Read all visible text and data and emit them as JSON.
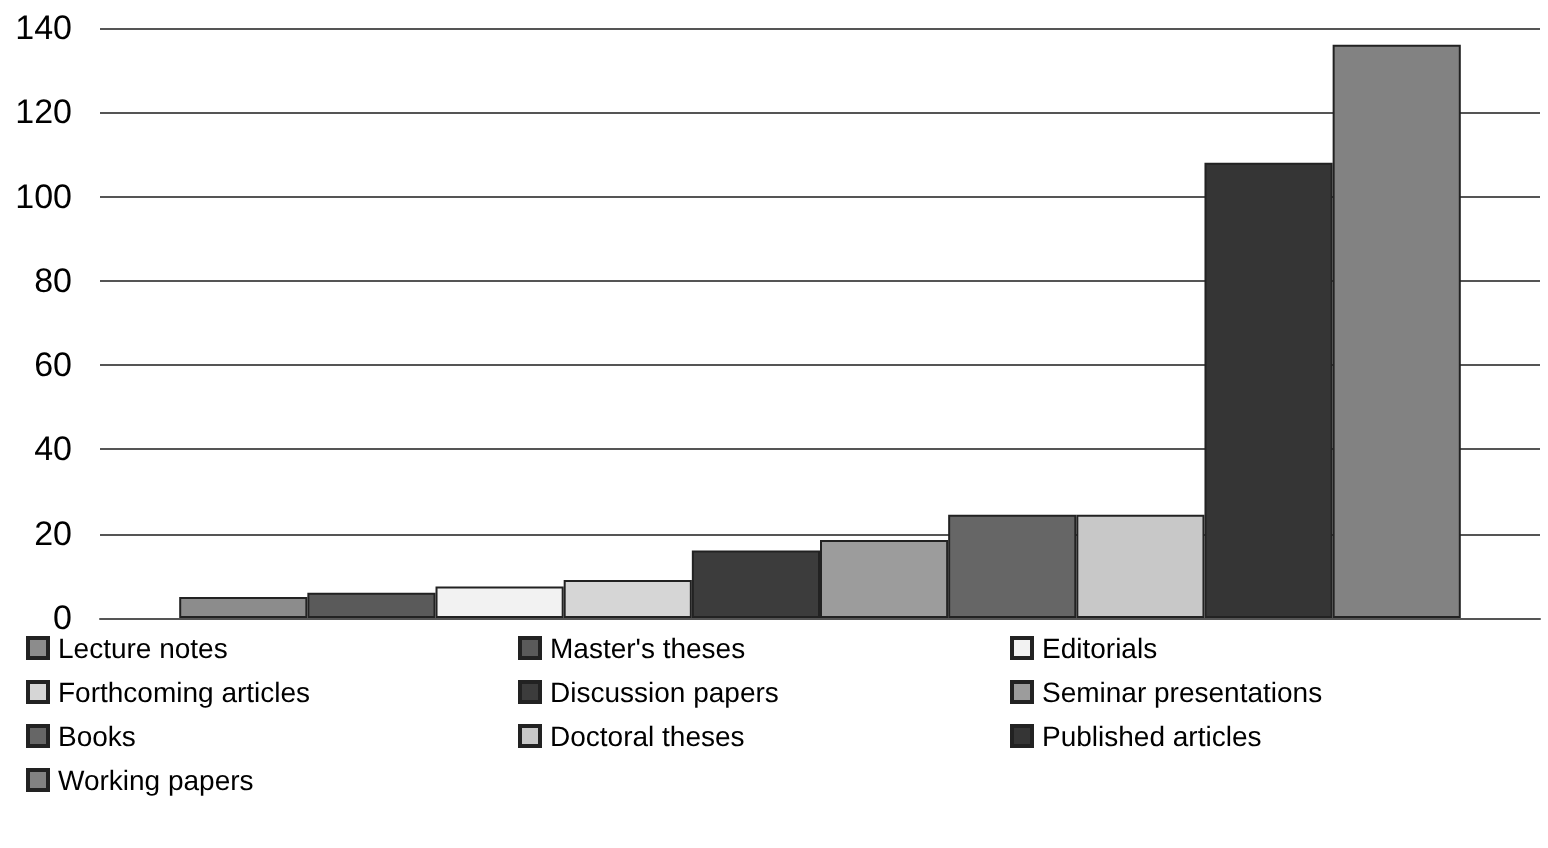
{
  "chart_data": {
    "type": "bar",
    "categories": [
      null
    ],
    "series": [
      {
        "name": "Lecture notes",
        "color": "#8c8c8c",
        "values": [
          5
        ]
      },
      {
        "name": "Master's theses",
        "color": "#5a5a5a",
        "values": [
          6
        ]
      },
      {
        "name": "Editorials",
        "color": "#f2f2f2",
        "values": [
          7.5
        ]
      },
      {
        "name": "Forthcoming articles",
        "color": "#d6d6d6",
        "values": [
          9
        ]
      },
      {
        "name": "Discussion papers",
        "color": "#3c3c3c",
        "values": [
          16
        ]
      },
      {
        "name": "Seminar presentations",
        "color": "#9c9c9c",
        "values": [
          18.5
        ]
      },
      {
        "name": "Books",
        "color": "#666666",
        "values": [
          24.5
        ]
      },
      {
        "name": "Doctoral theses",
        "color": "#c8c8c8",
        "values": [
          24.5
        ]
      },
      {
        "name": "Published articles",
        "color": "#353535",
        "values": [
          108
        ]
      },
      {
        "name": "Working papers",
        "color": "#828282",
        "values": [
          136
        ]
      }
    ],
    "ylim": [
      0,
      140
    ],
    "yticks": [
      0,
      20,
      40,
      60,
      80,
      100,
      120,
      140
    ],
    "grid": "y",
    "legend": "bottom"
  }
}
